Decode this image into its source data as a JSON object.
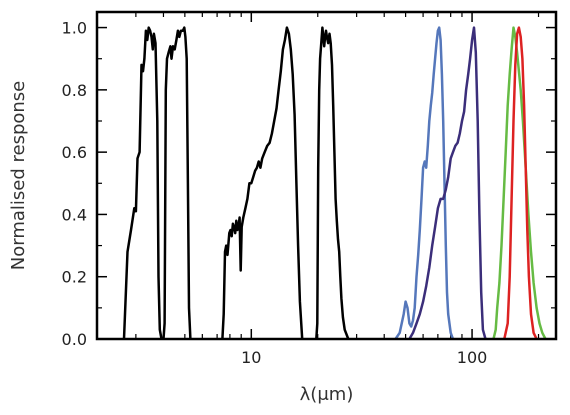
{
  "chart_data": {
    "type": "line",
    "title": "",
    "xlabel": "λ(μm)",
    "ylabel": "Normalised response",
    "xscale": "log",
    "xlim": [
      2,
      240
    ],
    "ylim": [
      0,
      1.05
    ],
    "xticks": [
      {
        "value": 10,
        "label": "10"
      },
      {
        "value": 100,
        "label": "100"
      }
    ],
    "yticks": [
      {
        "value": 0.0,
        "label": "0.0"
      },
      {
        "value": 0.2,
        "label": "0.2"
      },
      {
        "value": 0.4,
        "label": "0.4"
      },
      {
        "value": 0.6,
        "label": "0.6"
      },
      {
        "value": 0.8,
        "label": "0.8"
      },
      {
        "value": 1.0,
        "label": "1.0"
      }
    ],
    "grid": false,
    "legend": "none",
    "series": [
      {
        "color": "#000000",
        "points": [
          [
            2.65,
            0
          ],
          [
            2.75,
            0.28
          ],
          [
            2.85,
            0.35
          ],
          [
            2.95,
            0.42
          ],
          [
            3.0,
            0.41
          ],
          [
            3.05,
            0.58
          ],
          [
            3.12,
            0.6
          ],
          [
            3.18,
            0.88
          ],
          [
            3.23,
            0.86
          ],
          [
            3.28,
            0.9
          ],
          [
            3.33,
            0.99
          ],
          [
            3.38,
            0.96
          ],
          [
            3.43,
            1.0
          ],
          [
            3.48,
            0.99
          ],
          [
            3.53,
            0.97
          ],
          [
            3.58,
            0.93
          ],
          [
            3.62,
            0.98
          ],
          [
            3.68,
            0.95
          ],
          [
            3.75,
            0.7
          ],
          [
            3.8,
            0.2
          ],
          [
            3.85,
            0.03
          ],
          [
            3.92,
            0
          ]
        ]
      },
      {
        "color": "#000000",
        "points": [
          [
            4.0,
            0
          ],
          [
            4.05,
            0.05
          ],
          [
            4.1,
            0.8
          ],
          [
            4.15,
            0.9
          ],
          [
            4.22,
            0.92
          ],
          [
            4.3,
            0.94
          ],
          [
            4.35,
            0.9
          ],
          [
            4.42,
            0.94
          ],
          [
            4.5,
            0.93
          ],
          [
            4.58,
            0.96
          ],
          [
            4.65,
            0.99
          ],
          [
            4.72,
            0.97
          ],
          [
            4.8,
            0.99
          ],
          [
            4.9,
            0.99
          ],
          [
            4.97,
            1.0
          ],
          [
            5.03,
            0.97
          ],
          [
            5.1,
            0.9
          ],
          [
            5.16,
            0.5
          ],
          [
            5.22,
            0.1
          ],
          [
            5.3,
            0
          ]
        ]
      },
      {
        "color": "#000000",
        "points": [
          [
            7.4,
            0
          ],
          [
            7.5,
            0.08
          ],
          [
            7.6,
            0.28
          ],
          [
            7.7,
            0.3
          ],
          [
            7.8,
            0.27
          ],
          [
            7.95,
            0.34
          ],
          [
            8.05,
            0.35
          ],
          [
            8.15,
            0.33
          ],
          [
            8.25,
            0.37
          ],
          [
            8.35,
            0.36
          ],
          [
            8.45,
            0.34
          ],
          [
            8.55,
            0.38
          ],
          [
            8.65,
            0.35
          ],
          [
            8.75,
            0.36
          ],
          [
            8.85,
            0.39
          ],
          [
            8.95,
            0.22
          ],
          [
            9.05,
            0.36
          ],
          [
            9.2,
            0.39
          ],
          [
            9.4,
            0.42
          ],
          [
            9.6,
            0.45
          ],
          [
            9.8,
            0.5
          ],
          [
            10.0,
            0.5
          ],
          [
            10.2,
            0.52
          ],
          [
            10.4,
            0.54
          ],
          [
            10.6,
            0.55
          ],
          [
            10.8,
            0.57
          ],
          [
            11.0,
            0.55
          ],
          [
            11.2,
            0.58
          ],
          [
            11.5,
            0.6
          ],
          [
            11.8,
            0.62
          ],
          [
            12.1,
            0.63
          ],
          [
            12.4,
            0.66
          ],
          [
            12.7,
            0.7
          ],
          [
            13.0,
            0.74
          ],
          [
            13.3,
            0.8
          ],
          [
            13.6,
            0.86
          ],
          [
            13.9,
            0.93
          ],
          [
            14.2,
            0.96
          ],
          [
            14.5,
            1.0
          ],
          [
            14.8,
            0.98
          ],
          [
            15.1,
            0.93
          ],
          [
            15.4,
            0.85
          ],
          [
            15.7,
            0.72
          ],
          [
            16.0,
            0.5
          ],
          [
            16.3,
            0.3
          ],
          [
            16.6,
            0.12
          ],
          [
            17.0,
            0
          ]
        ]
      },
      {
        "color": "#000000",
        "points": [
          [
            19.7,
            0
          ],
          [
            19.9,
            0.05
          ],
          [
            20.1,
            0.55
          ],
          [
            20.3,
            0.8
          ],
          [
            20.5,
            0.9
          ],
          [
            20.8,
            0.96
          ],
          [
            21.0,
            1.0
          ],
          [
            21.2,
            0.97
          ],
          [
            21.4,
            0.94
          ],
          [
            21.6,
            0.97
          ],
          [
            21.8,
            0.99
          ],
          [
            22.0,
            0.97
          ],
          [
            22.3,
            0.95
          ],
          [
            22.6,
            0.98
          ],
          [
            22.9,
            0.95
          ],
          [
            23.2,
            0.88
          ],
          [
            23.5,
            0.75
          ],
          [
            23.8,
            0.6
          ],
          [
            24.1,
            0.45
          ],
          [
            24.4,
            0.38
          ],
          [
            24.7,
            0.32
          ],
          [
            25.0,
            0.28
          ],
          [
            25.3,
            0.2
          ],
          [
            25.6,
            0.13
          ],
          [
            26.0,
            0.07
          ],
          [
            26.5,
            0.03
          ],
          [
            27.5,
            0
          ]
        ]
      },
      {
        "color": "#5577bb",
        "points": [
          [
            45,
            0
          ],
          [
            47,
            0.02
          ],
          [
            49,
            0.08
          ],
          [
            50,
            0.12
          ],
          [
            51,
            0.1
          ],
          [
            52,
            0.05
          ],
          [
            53,
            0.04
          ],
          [
            54,
            0.06
          ],
          [
            55,
            0.1
          ],
          [
            56,
            0.2
          ],
          [
            57,
            0.27
          ],
          [
            58,
            0.35
          ],
          [
            59,
            0.45
          ],
          [
            60,
            0.55
          ],
          [
            61,
            0.57
          ],
          [
            62,
            0.55
          ],
          [
            63,
            0.62
          ],
          [
            64,
            0.7
          ],
          [
            65,
            0.75
          ],
          [
            66,
            0.79
          ],
          [
            67,
            0.85
          ],
          [
            68,
            0.9
          ],
          [
            69,
            0.95
          ],
          [
            70,
            0.99
          ],
          [
            71,
            1.0
          ],
          [
            72,
            0.96
          ],
          [
            73,
            0.85
          ],
          [
            74,
            0.7
          ],
          [
            75,
            0.5
          ],
          [
            76,
            0.3
          ],
          [
            77,
            0.15
          ],
          [
            78,
            0.08
          ],
          [
            80,
            0.02
          ],
          [
            82,
            0
          ]
        ]
      },
      {
        "color": "#3b2e7a",
        "points": [
          [
            52,
            0
          ],
          [
            54,
            0.02
          ],
          [
            56,
            0.05
          ],
          [
            58,
            0.08
          ],
          [
            60,
            0.12
          ],
          [
            62,
            0.17
          ],
          [
            64,
            0.23
          ],
          [
            66,
            0.3
          ],
          [
            68,
            0.36
          ],
          [
            70,
            0.42
          ],
          [
            72,
            0.45
          ],
          [
            74,
            0.45
          ],
          [
            76,
            0.48
          ],
          [
            78,
            0.52
          ],
          [
            80,
            0.58
          ],
          [
            82,
            0.6
          ],
          [
            84,
            0.62
          ],
          [
            86,
            0.63
          ],
          [
            88,
            0.66
          ],
          [
            90,
            0.7
          ],
          [
            92,
            0.73
          ],
          [
            94,
            0.8
          ],
          [
            96,
            0.85
          ],
          [
            98,
            0.9
          ],
          [
            100,
            0.96
          ],
          [
            102,
            1.0
          ],
          [
            104,
            0.92
          ],
          [
            106,
            0.7
          ],
          [
            108,
            0.4
          ],
          [
            110,
            0.15
          ],
          [
            112,
            0.03
          ],
          [
            115,
            0
          ]
        ]
      },
      {
        "color": "#66bb44",
        "points": [
          [
            125,
            0
          ],
          [
            128,
            0.03
          ],
          [
            130,
            0.1
          ],
          [
            133,
            0.18
          ],
          [
            136,
            0.3
          ],
          [
            139,
            0.45
          ],
          [
            142,
            0.6
          ],
          [
            145,
            0.75
          ],
          [
            148,
            0.85
          ],
          [
            151,
            0.93
          ],
          [
            154,
            1.0
          ],
          [
            157,
            0.97
          ],
          [
            160,
            0.92
          ],
          [
            163,
            0.86
          ],
          [
            166,
            0.8
          ],
          [
            170,
            0.7
          ],
          [
            175,
            0.55
          ],
          [
            180,
            0.4
          ],
          [
            185,
            0.28
          ],
          [
            190,
            0.18
          ],
          [
            196,
            0.1
          ],
          [
            202,
            0.05
          ],
          [
            208,
            0.02
          ],
          [
            215,
            0
          ]
        ]
      },
      {
        "color": "#dd2222",
        "points": [
          [
            140,
            0
          ],
          [
            145,
            0.05
          ],
          [
            148,
            0.2
          ],
          [
            151,
            0.45
          ],
          [
            154,
            0.7
          ],
          [
            157,
            0.88
          ],
          [
            160,
            0.98
          ],
          [
            163,
            1.0
          ],
          [
            166,
            0.97
          ],
          [
            169,
            0.9
          ],
          [
            172,
            0.75
          ],
          [
            175,
            0.55
          ],
          [
            178,
            0.35
          ],
          [
            181,
            0.2
          ],
          [
            185,
            0.08
          ],
          [
            190,
            0.02
          ],
          [
            196,
            0
          ]
        ]
      }
    ]
  }
}
